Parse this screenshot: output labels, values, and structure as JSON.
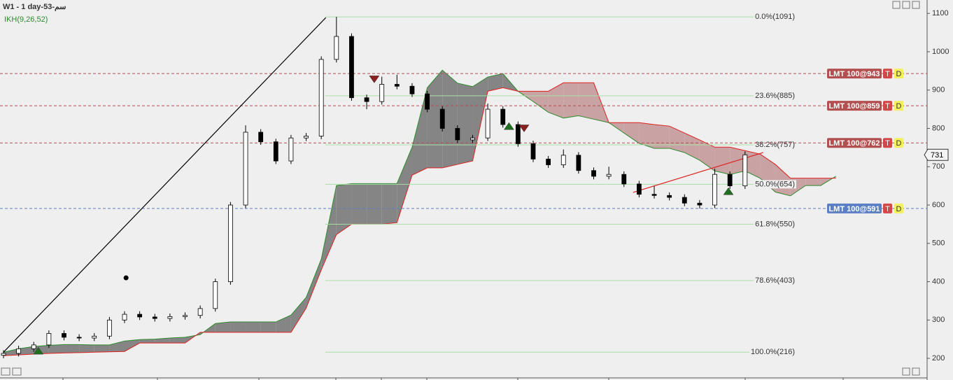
{
  "chart_data": {
    "type": "candlestick",
    "title": "W1 - 1 day-سم-53",
    "indicator": "IKH(9,26,52)",
    "ylim": [
      149,
      1135
    ],
    "yticks": [
      200,
      300,
      400,
      500,
      600,
      700,
      800,
      900,
      1000,
      1100
    ],
    "xlim": [
      -0.23,
      61.03
    ],
    "up_color": "#ffffff",
    "down_color": "#000000",
    "open": [
      208,
      213,
      225,
      235,
      265,
      255,
      253,
      258,
      300,
      315,
      308,
      304,
      309,
      312,
      330,
      400,
      600,
      790,
      765,
      715,
      775,
      780,
      980,
      1040,
      880,
      870,
      915,
      910,
      890,
      850,
      800,
      770,
      775,
      850,
      810,
      760,
      720,
      705,
      730,
      690,
      675,
      680,
      655,
      628,
      625,
      620,
      605,
      600,
      680,
      650
    ],
    "high": [
      221,
      233,
      243,
      273,
      273,
      263,
      266,
      308,
      323,
      323,
      316,
      317,
      320,
      338,
      408,
      608,
      808,
      798,
      773,
      783,
      788,
      988,
      1091,
      1048,
      888,
      935,
      940,
      918,
      898,
      858,
      808,
      783,
      865,
      858,
      818,
      768,
      728,
      745,
      738,
      698,
      700,
      688,
      663,
      650,
      633,
      628,
      613,
      695,
      688,
      740
    ],
    "low": [
      200,
      205,
      217,
      227,
      247,
      245,
      245,
      250,
      292,
      300,
      296,
      296,
      301,
      304,
      322,
      392,
      592,
      757,
      707,
      707,
      767,
      772,
      972,
      872,
      850,
      862,
      902,
      882,
      842,
      792,
      762,
      762,
      767,
      802,
      752,
      712,
      697,
      697,
      682,
      667,
      667,
      647,
      620,
      617,
      612,
      597,
      591,
      592,
      642,
      642
    ],
    "close": [
      213,
      225,
      235,
      265,
      255,
      253,
      258,
      300,
      315,
      308,
      304,
      309,
      312,
      330,
      400,
      600,
      790,
      765,
      715,
      775,
      780,
      980,
      1040,
      880,
      870,
      915,
      910,
      890,
      850,
      800,
      770,
      775,
      850,
      810,
      760,
      720,
      705,
      730,
      690,
      675,
      680,
      655,
      628,
      625,
      620,
      605,
      600,
      680,
      650,
      731
    ],
    "ichimoku": {
      "bull_fill": "#858585",
      "bear_fill": "#c9a3a3",
      "span_a": {
        "color": "#2e8b2e",
        "values": [
          216,
          225,
          231,
          234,
          236,
          236,
          235,
          235,
          245,
          249,
          250,
          253,
          255,
          262,
          291,
          295,
          295,
          295,
          295,
          313,
          359,
          459,
          651,
          656,
          656,
          656,
          656,
          751,
          906,
          952,
          918,
          909,
          934,
          943,
          897,
          870,
          842,
          827,
          833,
          824,
          815,
          788,
          761,
          748,
          748,
          737,
          717,
          689,
          680,
          689,
          670,
          634,
          624,
          651,
          651,
          675
        ]
      },
      "span_b": {
        "color": "#e02020",
        "values": [
          207,
          209,
          211,
          213,
          214,
          215,
          216,
          217,
          218,
          240,
          240,
          240,
          240,
          268,
          268,
          268,
          268,
          268,
          268,
          268,
          331,
          431,
          523,
          550,
          550,
          550,
          554,
          678,
          697,
          697,
          706,
          715,
          897,
          906,
          897,
          897,
          897,
          919,
          919,
          919,
          815,
          815,
          815,
          810,
          806,
          788,
          770,
          751,
          751,
          742,
          733,
          706,
          670,
          670,
          670,
          670
        ]
      }
    },
    "fib_color": "#a6e0a6",
    "fib_levels": [
      {
        "label": "0.0%(1091)",
        "value": 1091
      },
      {
        "label": "23.6%(885)",
        "value": 885
      },
      {
        "label": "38.2%(757)",
        "value": 757
      },
      {
        "label": "50.0%(654)",
        "value": 654
      },
      {
        "label": "61.8%(550)",
        "value": 550
      },
      {
        "label": "78.6%(403)",
        "value": 403
      },
      {
        "label": "100.0%(216)",
        "value": 216
      }
    ],
    "orders": [
      {
        "label": "LMT 100@943",
        "value": 943,
        "color": "#b24f4f",
        "buttons": [
          "T",
          "D"
        ]
      },
      {
        "label": "LMT 100@859",
        "value": 859,
        "color": "#b24f4f",
        "buttons": [
          "T",
          "D"
        ]
      },
      {
        "label": "LMT 100@762",
        "value": 762,
        "color": "#b24f4f",
        "buttons": [
          "T",
          "D"
        ]
      },
      {
        "label": "LMT 100@591",
        "value": 591,
        "color": "#5b7fc4",
        "buttons": [
          "T",
          "D"
        ]
      }
    ],
    "last_price": 731,
    "trendlines": [
      {
        "x": [
          0,
          21.3
        ],
        "y": [
          216,
          1089
        ],
        "color": "#000000"
      },
      {
        "x": [
          41.6,
          50.2
        ],
        "y": [
          633,
          737
        ],
        "color": "#e02020"
      }
    ],
    "markers": [
      {
        "x": 2.3,
        "y": 220,
        "shape": "up",
        "color": "#1f6f1f"
      },
      {
        "x": 24.5,
        "y": 928,
        "shape": "down",
        "color": "#8b1f1f"
      },
      {
        "x": 33.4,
        "y": 806,
        "shape": "up",
        "color": "#1f6f1f"
      },
      {
        "x": 34.4,
        "y": 800,
        "shape": "down",
        "color": "#8b1f1f"
      },
      {
        "x": 47.9,
        "y": 636,
        "shape": "up",
        "color": "#1f6f1f"
      },
      {
        "x": 8.1,
        "y": 410,
        "shape": "dot",
        "color": "#000000"
      }
    ]
  }
}
